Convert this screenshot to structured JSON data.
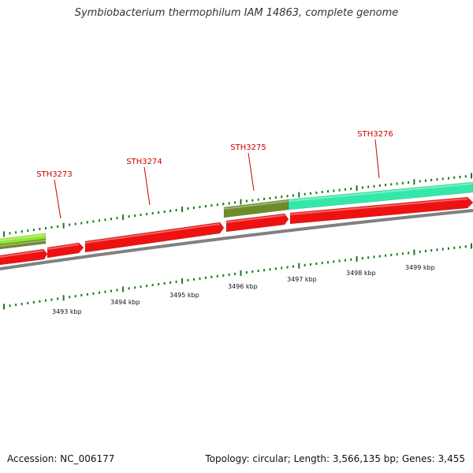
{
  "title": "Symbiobacterium thermophilum IAM 14863, complete genome",
  "footer": {
    "accession": "Accession: NC_006177",
    "summary": "Topology: circular; Length: 3,566,135 bp; Genes: 3,455"
  },
  "colors": {
    "ruler_tick": "#1a7a1a",
    "label": "#cc0000",
    "backbone": "#808080"
  },
  "ruler_labels": [
    "3493 kbp",
    "3494 kbp",
    "3495 kbp",
    "3496 kbp",
    "3497 kbp",
    "3498 kbp",
    "3499 kbp"
  ],
  "gene_labels": [
    "STH3273",
    "STH3274",
    "STH3275",
    "STH3276"
  ],
  "features": [
    {
      "name": "forward-gene-lime",
      "color": "#8ee82a"
    },
    {
      "name": "forward-gene-olive-left",
      "color": "#6e8b2a"
    },
    {
      "name": "forward-gene-olive",
      "color": "#6e8b2a"
    },
    {
      "name": "forward-gene-teal",
      "color": "#33e8a8"
    },
    {
      "name": "reverse-gene-1",
      "color": "#ee1111"
    },
    {
      "name": "reverse-gene-2",
      "color": "#ee1111"
    },
    {
      "name": "reverse-gene-3",
      "color": "#ee1111"
    },
    {
      "name": "reverse-gene-4",
      "color": "#ee1111"
    },
    {
      "name": "reverse-gene-5",
      "color": "#ee1111"
    }
  ]
}
